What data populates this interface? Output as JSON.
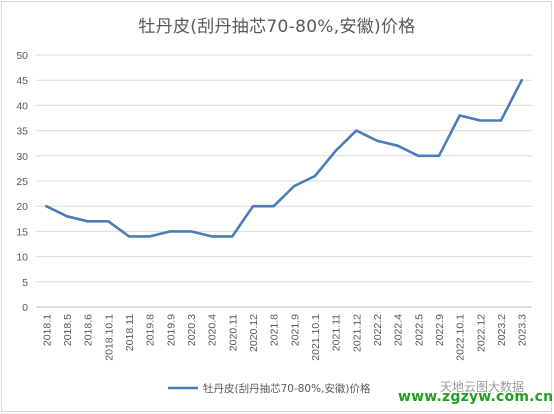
{
  "chart_data": {
    "type": "line",
    "title": "牡丹皮(刮丹抽芯70-80%,安徽)价格",
    "xlabel": "",
    "ylabel": "",
    "ylim": [
      0,
      50
    ],
    "yticks": [
      0,
      5,
      10,
      15,
      20,
      25,
      30,
      35,
      40,
      45,
      50
    ],
    "grid": true,
    "legend_position": "bottom",
    "categories": [
      "2018.1",
      "2018.5",
      "2018.6",
      "2018.10.1",
      "2018.11",
      "2019.8",
      "2019.9",
      "2020.3",
      "2020.4",
      "2020.11",
      "2020.12",
      "2021.8",
      "2021.9",
      "2021.10.1",
      "2021.11",
      "2021.12",
      "2022.2",
      "2022.4",
      "2022.5",
      "2022.9",
      "2022.10.1",
      "2022.12",
      "2023.2",
      "2023.3"
    ],
    "series": [
      {
        "name": "牡丹皮(刮丹抽芯70-80%,安徽)价格",
        "color": "#4a7ebb",
        "values": [
          20,
          18,
          17,
          17,
          14,
          14,
          15,
          15,
          14,
          14,
          20,
          20,
          24,
          26,
          31,
          35,
          33,
          32,
          30,
          30,
          38,
          37,
          37,
          45
        ]
      }
    ]
  },
  "watermark": {
    "line1": "天地云图大数据",
    "line2": "www.zgzyw.com.cn"
  }
}
